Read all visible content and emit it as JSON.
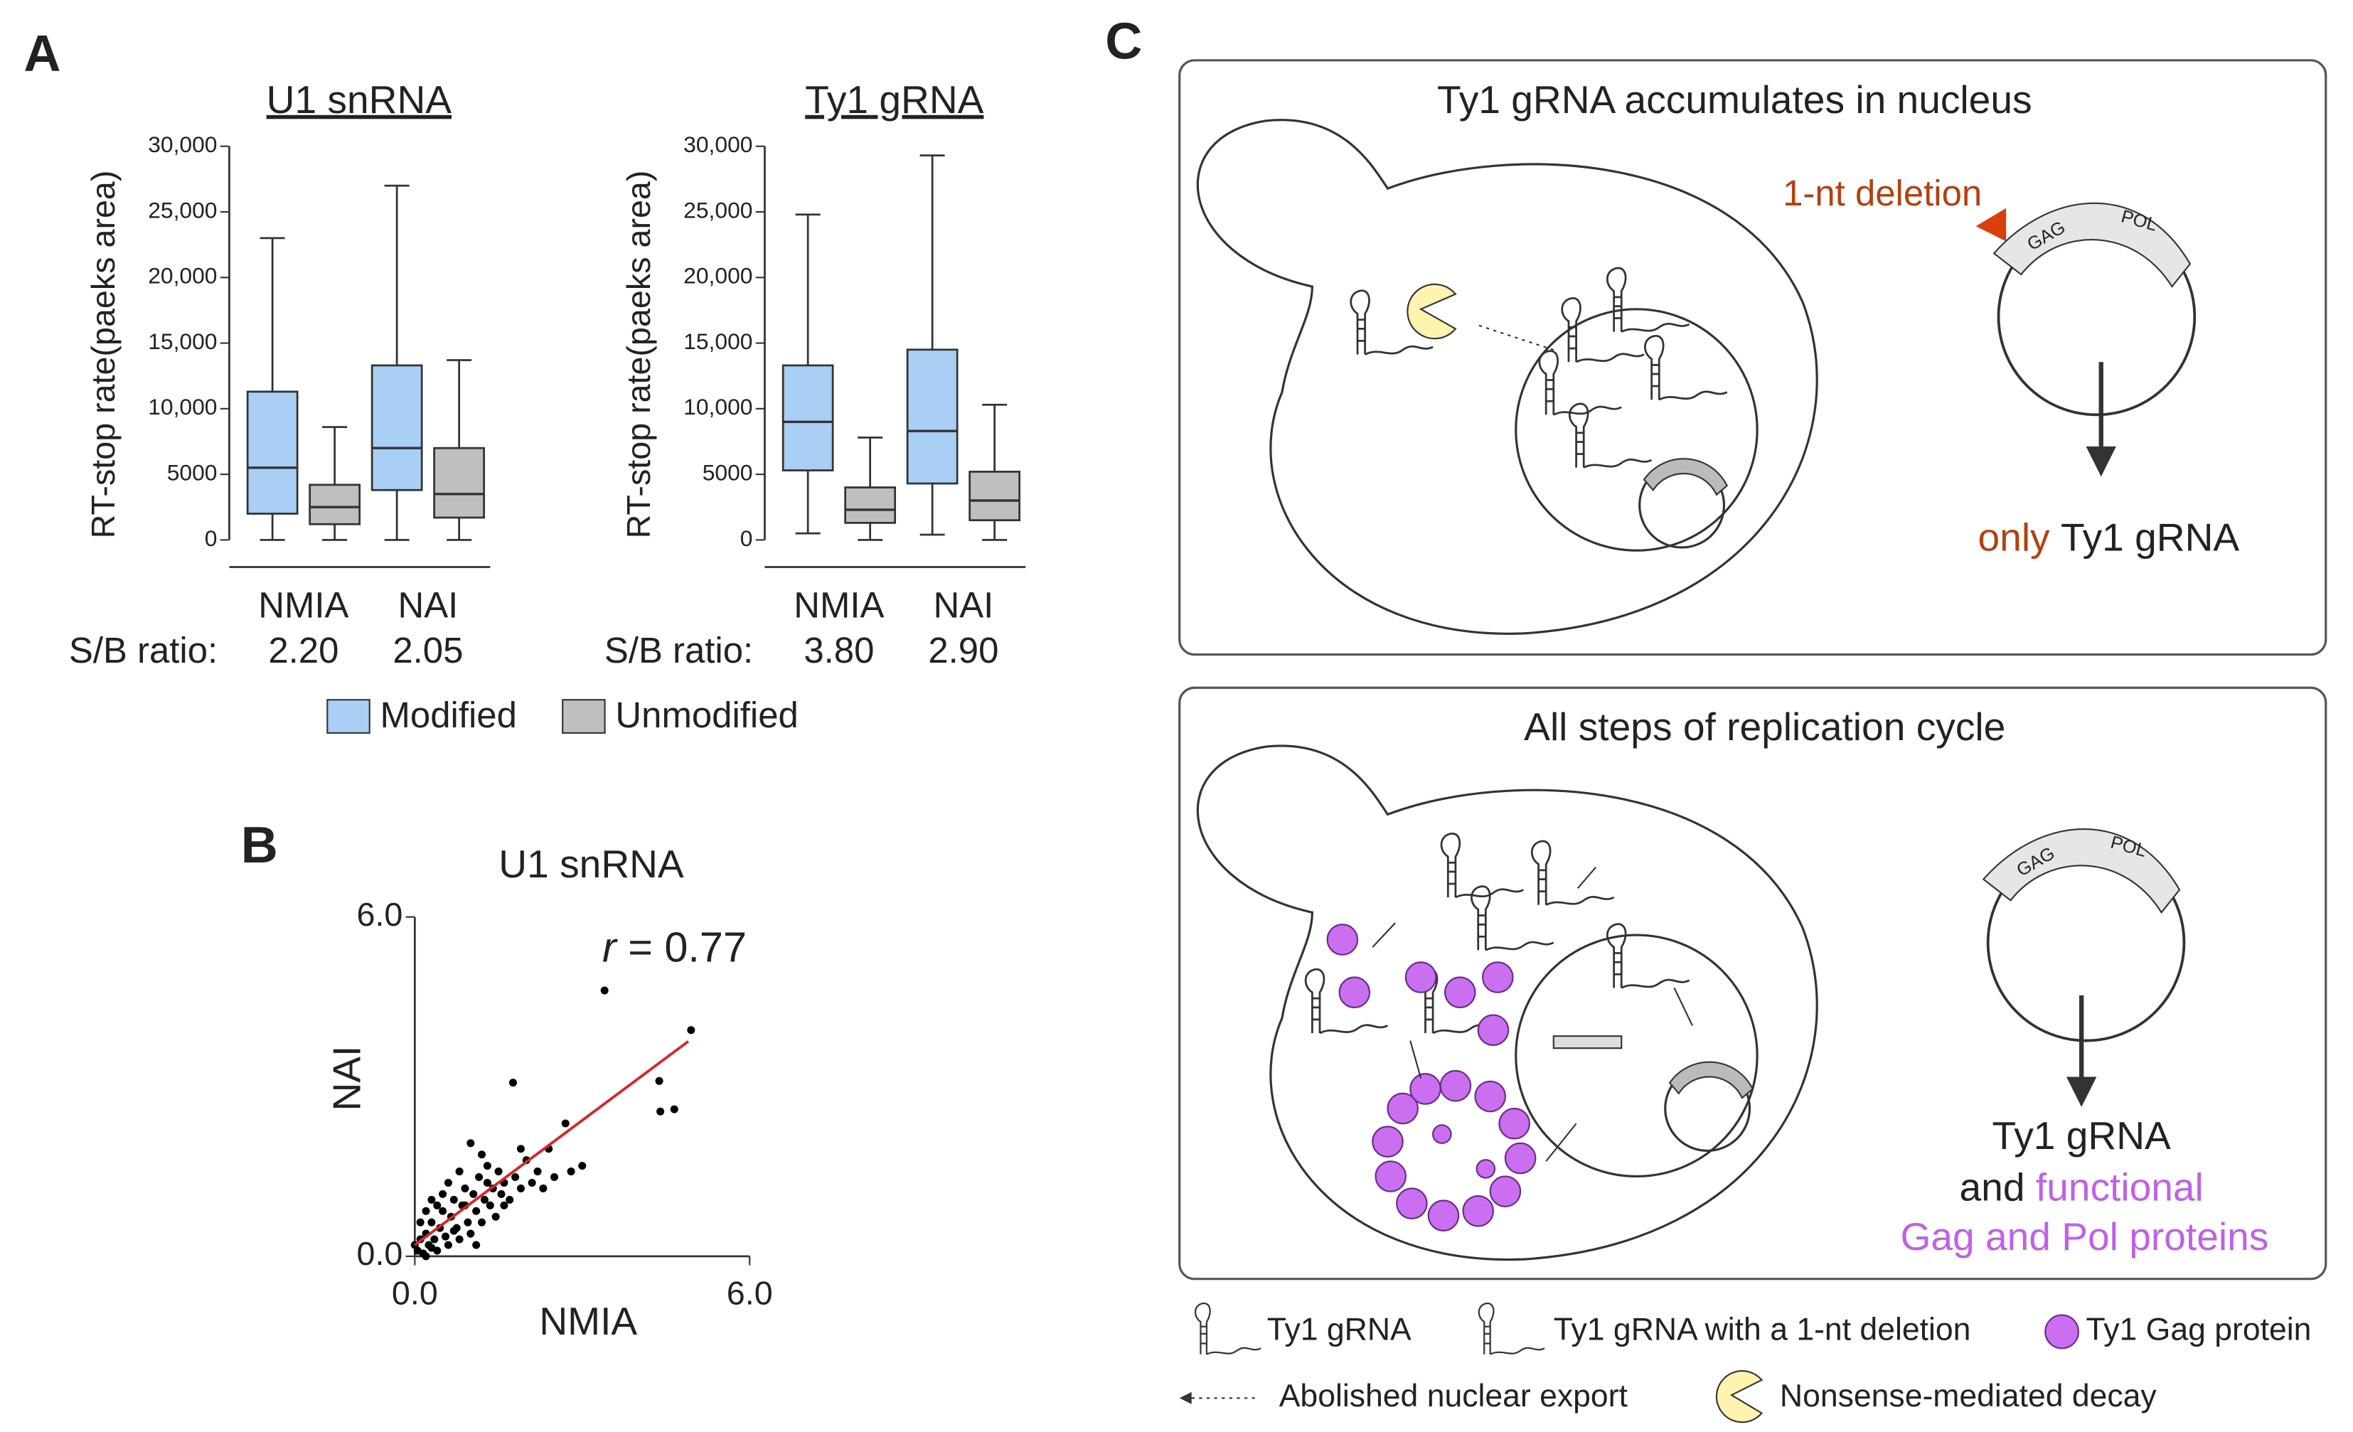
{
  "panel_labels": [
    "A",
    "B",
    "C"
  ],
  "chart_data": [
    {
      "type": "box",
      "title": "U1 snRNA",
      "y_label": "RT-stop rate(paeks area)",
      "categories": [
        "NMIA",
        "NAI"
      ],
      "ylim": [
        0,
        30000
      ],
      "yticks": [
        0,
        5000,
        {
          "value": 10000,
          "label": "10,000"
        },
        {
          "value": 15000,
          "label": "15,000"
        },
        {
          "value": 20000,
          "label": "20,000"
        },
        {
          "value": 25000,
          "label": "25,000"
        },
        {
          "value": 30000,
          "label": "30,000"
        }
      ],
      "series": [
        {
          "name": "Modified",
          "color": "#a9cff5",
          "values": [
            [
              0,
              2000,
              5500,
              11300,
              23000
            ],
            [
              0,
              3800,
              7000,
              13300,
              27000
            ]
          ]
        },
        {
          "name": "Unmodified",
          "color": "#bfbfbf",
          "values": [
            [
              0,
              1200,
              2500,
              4200,
              8600
            ],
            [
              0,
              1700,
              3500,
              7000,
              13700
            ]
          ]
        }
      ],
      "ratio_label": "S/B ratio:",
      "ratios": [
        "2.20",
        "2.05"
      ]
    },
    {
      "type": "box",
      "title": "Ty1 gRNA",
      "y_label": "RT-stop rate(paeks area)",
      "categories": [
        "NMIA",
        "NAI"
      ],
      "ylim": [
        0,
        30000
      ],
      "yticks": [
        0,
        5000,
        {
          "value": 10000,
          "label": "10,000"
        },
        {
          "value": 15000,
          "label": "15,000"
        },
        {
          "value": 20000,
          "label": "20,000"
        },
        {
          "value": 25000,
          "label": "25,000"
        },
        {
          "value": 30000,
          "label": "30,000"
        }
      ],
      "series": [
        {
          "color": "#a9cff5",
          "values": [
            [
              500,
              5300,
              9000,
              13300,
              24800
            ],
            [
              400,
              4300,
              8300,
              14500,
              29300
            ]
          ]
        },
        {
          "color": "#bfbfbf",
          "values": [
            [
              0,
              1300,
              2300,
              4000,
              7800
            ],
            [
              0,
              1500,
              3000,
              5200,
              10300
            ]
          ]
        }
      ],
      "ratio_label": "S/B ratio:",
      "ratios": [
        "3.80",
        "2.90"
      ]
    },
    {
      "type": "scatter",
      "title": "U1 snRNA",
      "x_label": "NMIA",
      "y_label": "NAI",
      "annotation_symbol": "r",
      "annotation_text": "= 0.77",
      "xlim": [
        0,
        6
      ],
      "ylim": [
        0,
        6
      ],
      "xticks": [
        {
          "value": 0,
          "label": "0.0"
        },
        {
          "value": 6,
          "label": "6.0"
        }
      ],
      "yticks": [
        {
          "value": 0,
          "label": "0.0"
        },
        {
          "value": 6,
          "label": "6.0"
        }
      ],
      "color": "#000000",
      "x": [
        0.05,
        0.1,
        0.15,
        0.2,
        0.25,
        0.3,
        0.35,
        0.4,
        0.45,
        0.5,
        0.55,
        0.6,
        0.65,
        0.7,
        0.75,
        0.8,
        0.85,
        0.9,
        0.95,
        1.0,
        1.05,
        1.1,
        1.15,
        1.2,
        1.25,
        1.3,
        1.35,
        1.4,
        1.45,
        1.5,
        1.55,
        1.6,
        1.1,
        1.7,
        1.8,
        1.9,
        2.0,
        2.1,
        2.2,
        2.4,
        2.5,
        2.7,
        2.8,
        1.0,
        1.76,
        3.4,
        4.95,
        4.38,
        4.4,
        4.65,
        0.1,
        0.2,
        0.3,
        0.4,
        0.6,
        0.8,
        0.5,
        0.2,
        0.0,
        0.3,
        0.7,
        1.2,
        1.3,
        0.9,
        1.6,
        2.3,
        3.0,
        1.9
      ],
      "y": [
        0.1,
        0.3,
        0.05,
        0.4,
        0.2,
        0.6,
        0.3,
        0.1,
        0.5,
        0.8,
        0.35,
        0.2,
        0.7,
        1.0,
        0.5,
        0.3,
        0.9,
        1.2,
        0.6,
        0.4,
        1.1,
        0.8,
        1.4,
        0.6,
        1.0,
        1.6,
        0.9,
        1.2,
        0.7,
        1.5,
        1.1,
        1.3,
        0.2,
        1.0,
        1.4,
        1.2,
        1.7,
        1.3,
        1.5,
        1.9,
        1.4,
        2.35,
        1.5,
        2.0,
        3.07,
        4.7,
        4.0,
        3.1,
        2.56,
        2.6,
        0.6,
        0.8,
        1.0,
        0.9,
        1.3,
        1.5,
        1.1,
        0.0,
        0.2,
        0.15,
        0.45,
        1.8,
        1.3,
        0.9,
        0.9,
        1.2,
        1.6,
        1.9
      ],
      "fit_line": {
        "x": [
          0,
          4.9
        ],
        "y": [
          0.2,
          3.8
        ],
        "color": "#d62728"
      }
    }
  ],
  "diagram": {
    "top": {
      "title": "Ty1 gRNA accumulates in nucleus",
      "deletion": "1-nt deletion",
      "gag": "GAG",
      "pol": "POL",
      "result_prefix": "only",
      "result": "Ty1 gRNA"
    },
    "bottom": {
      "title": "All steps of replication cycle",
      "gag": "GAG",
      "pol": "POL",
      "result_1": "Ty1 gRNA",
      "result_2_prefix": "and",
      "result_2": "functional",
      "result_3": "Gag and Pol proteins"
    },
    "legend": [
      "Ty1 gRNA",
      "Ty1 gRNA with a 1-nt deletion",
      "Ty1 Gag protein",
      "Abolished nuclear export",
      "Nonsense-mediated decay"
    ]
  }
}
